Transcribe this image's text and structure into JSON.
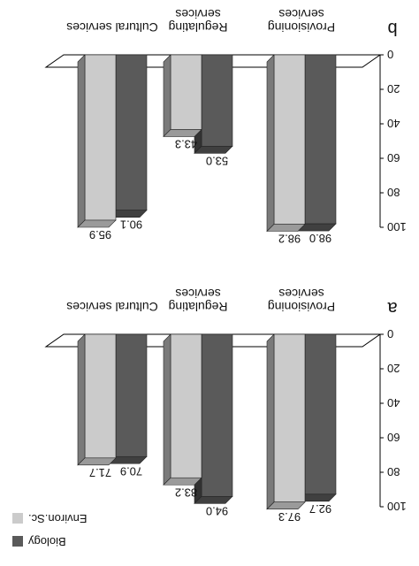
{
  "chart_data": [
    {
      "type": "bar",
      "panel_label": "a",
      "categories": [
        "Provisioning services",
        "Regulating services",
        "Cultural services"
      ],
      "category_lines": [
        [
          "Provisioning",
          "services"
        ],
        [
          "Regulating",
          "services"
        ],
        [
          "Cultural services"
        ]
      ],
      "series": [
        {
          "name": "Biology",
          "values": [
            92.7,
            94.0,
            70.9
          ]
        },
        {
          "name": "Environ.Sc.",
          "values": [
            97.3,
            83.2,
            71.7
          ]
        }
      ],
      "value_labels": [
        [
          "92.7",
          "94.0",
          "70.9"
        ],
        [
          "97.3",
          "83.2",
          "71.7"
        ]
      ],
      "yticks": [
        "0",
        "20",
        "40",
        "60",
        "80",
        "100"
      ],
      "ylim": [
        0,
        100
      ],
      "legend_position": "bottom-right"
    },
    {
      "type": "bar",
      "panel_label": "b",
      "categories": [
        "Provisioning services",
        "Regulating services",
        "Cultural services"
      ],
      "category_lines": [
        [
          "Provisioning",
          "services"
        ],
        [
          "Regulating",
          "services"
        ],
        [
          "Cultural services"
        ]
      ],
      "series": [
        {
          "name": "Biology",
          "values": [
            98.0,
            53.0,
            90.1
          ]
        },
        {
          "name": "Environ.Sc.",
          "values": [
            98.2,
            43.3,
            95.9
          ]
        }
      ],
      "value_labels": [
        [
          "98.0",
          "53.0",
          "90.1"
        ],
        [
          "98.2",
          "43.3",
          "95.9"
        ]
      ],
      "yticks": [
        "0",
        "20",
        "40",
        "60",
        "80",
        "100"
      ],
      "ylim": [
        0,
        100
      ]
    }
  ],
  "colors": {
    "biology_front": "#5a5a5a",
    "biology_side": "#333333",
    "biology_top": "#404040",
    "environ_front": "#cbcbcb",
    "environ_side": "#7a7a7a",
    "environ_top": "#9a9a9a"
  },
  "legend": {
    "biology": "Biology",
    "environ": "Environ.Sc."
  }
}
